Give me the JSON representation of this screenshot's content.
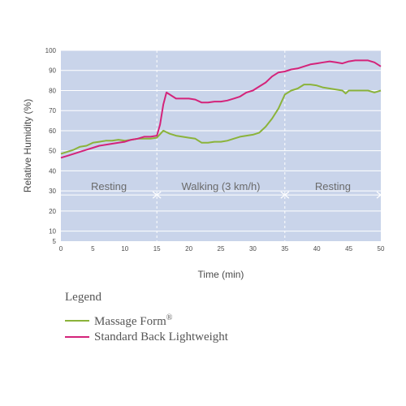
{
  "chart_data": {
    "type": "line",
    "title": "",
    "xlabel": "Time (min)",
    "ylabel": "Relative Humidity (%)",
    "xlim": [
      0,
      50
    ],
    "ylim": [
      5,
      100
    ],
    "xticks": [
      0,
      5,
      10,
      15,
      20,
      25,
      30,
      35,
      40,
      45,
      50
    ],
    "yticks": [
      5,
      10,
      20,
      30,
      40,
      50,
      60,
      70,
      80,
      90,
      100
    ],
    "grid": true,
    "background_color": "#c9d4ea",
    "phases": [
      {
        "label": "Resting",
        "start": 0,
        "end": 15
      },
      {
        "label": "Walking (3 km/h)",
        "start": 15,
        "end": 35
      },
      {
        "label": "Resting",
        "start": 35,
        "end": 50
      }
    ],
    "series": [
      {
        "name": "Massage Form",
        "trademark": "®",
        "color": "#8bb33a",
        "points": [
          [
            0,
            48.5
          ],
          [
            1,
            49.5
          ],
          [
            2,
            50.5
          ],
          [
            3,
            52
          ],
          [
            4,
            52.5
          ],
          [
            5,
            54
          ],
          [
            6,
            54.5
          ],
          [
            7,
            55
          ],
          [
            8,
            55
          ],
          [
            9,
            55.5
          ],
          [
            10,
            55
          ],
          [
            11,
            55.5
          ],
          [
            12,
            56
          ],
          [
            13,
            56
          ],
          [
            14,
            56
          ],
          [
            15,
            56.5
          ],
          [
            16,
            60
          ],
          [
            17,
            58.5
          ],
          [
            18,
            57.5
          ],
          [
            19,
            57
          ],
          [
            20,
            56.5
          ],
          [
            21,
            56
          ],
          [
            22,
            54
          ],
          [
            23,
            54
          ],
          [
            24,
            54.5
          ],
          [
            25,
            54.5
          ],
          [
            26,
            55
          ],
          [
            27,
            56
          ],
          [
            28,
            57
          ],
          [
            29,
            57.5
          ],
          [
            30,
            58
          ],
          [
            31,
            59
          ],
          [
            32,
            62
          ],
          [
            33,
            66
          ],
          [
            34,
            71
          ],
          [
            35,
            78
          ],
          [
            36,
            80
          ],
          [
            37,
            81
          ],
          [
            38,
            83
          ],
          [
            39,
            83
          ],
          [
            40,
            82.5
          ],
          [
            41,
            81.5
          ],
          [
            42,
            81
          ],
          [
            43,
            80.5
          ],
          [
            44,
            80
          ],
          [
            44.5,
            78.5
          ],
          [
            45,
            80
          ],
          [
            46,
            80
          ],
          [
            47,
            80
          ],
          [
            48,
            80
          ],
          [
            49,
            79
          ],
          [
            50,
            80
          ]
        ]
      },
      {
        "name": "Standard Back Lightweight",
        "color": "#d4237a",
        "points": [
          [
            0,
            46.5
          ],
          [
            1,
            47.5
          ],
          [
            2,
            48.5
          ],
          [
            3,
            49.5
          ],
          [
            4,
            50.5
          ],
          [
            5,
            51.5
          ],
          [
            6,
            52.5
          ],
          [
            7,
            53
          ],
          [
            8,
            53.5
          ],
          [
            9,
            54
          ],
          [
            10,
            54.5
          ],
          [
            11,
            55.5
          ],
          [
            12,
            56
          ],
          [
            13,
            57
          ],
          [
            14,
            57
          ],
          [
            15,
            57.5
          ],
          [
            15.5,
            63
          ],
          [
            16,
            73
          ],
          [
            16.5,
            79
          ],
          [
            17,
            78
          ],
          [
            18,
            76
          ],
          [
            19,
            76
          ],
          [
            20,
            76
          ],
          [
            21,
            75.5
          ],
          [
            22,
            74
          ],
          [
            23,
            74
          ],
          [
            24,
            74.5
          ],
          [
            25,
            74.5
          ],
          [
            26,
            75
          ],
          [
            27,
            76
          ],
          [
            28,
            77
          ],
          [
            29,
            79
          ],
          [
            30,
            80
          ],
          [
            31,
            82
          ],
          [
            32,
            84
          ],
          [
            33,
            87
          ],
          [
            34,
            89
          ],
          [
            35,
            89.5
          ],
          [
            36,
            90.5
          ],
          [
            37,
            91
          ],
          [
            38,
            92
          ],
          [
            39,
            93
          ],
          [
            40,
            93.5
          ],
          [
            41,
            94
          ],
          [
            42,
            94.5
          ],
          [
            43,
            94
          ],
          [
            44,
            93.5
          ],
          [
            45,
            94.5
          ],
          [
            46,
            95
          ],
          [
            47,
            95
          ],
          [
            48,
            95
          ],
          [
            49,
            94
          ],
          [
            50,
            92
          ]
        ]
      }
    ]
  },
  "legend": {
    "title": "Legend"
  }
}
